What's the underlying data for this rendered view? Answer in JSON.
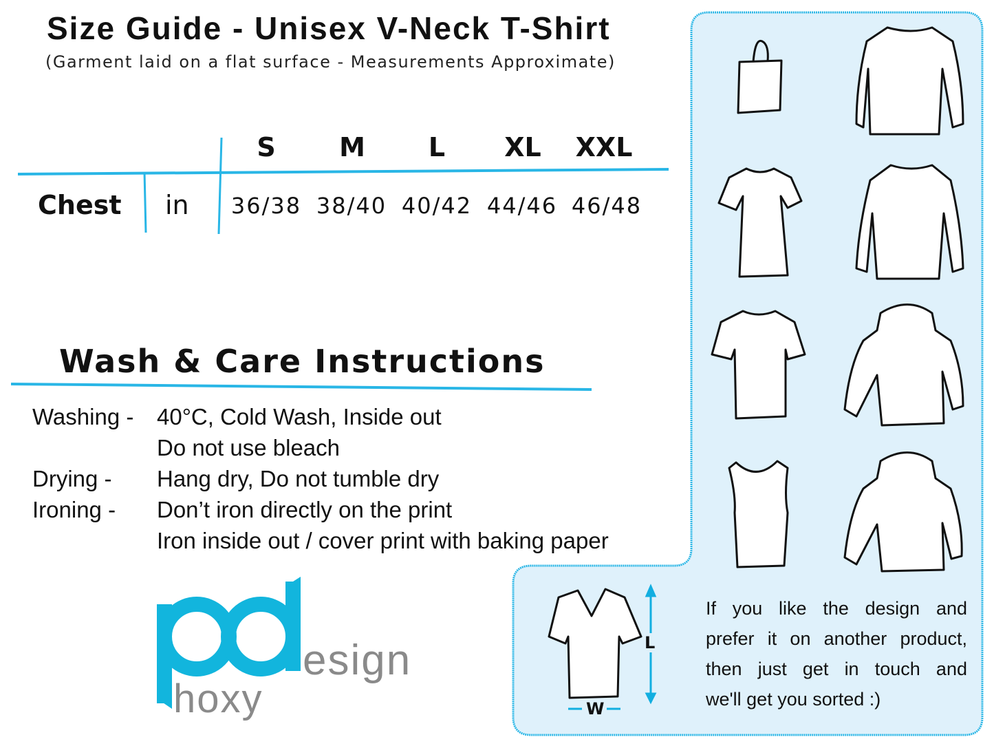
{
  "header": {
    "title": "Size Guide - Unisex V-Neck T-Shirt",
    "subtitle": "(Garment laid on a flat surface - Measurements Approximate)"
  },
  "size_table": {
    "sizes": [
      "S",
      "M",
      "L",
      "XL",
      "XXL"
    ],
    "rows": [
      {
        "label": "Chest",
        "unit": "in",
        "values": [
          "36/38",
          "38/40",
          "40/42",
          "44/46",
          "46/48"
        ]
      }
    ]
  },
  "care": {
    "title": "Wash & Care Instructions",
    "items": [
      {
        "label": "Washing -",
        "lines": [
          "40°C, Cold Wash, Inside out",
          "Do not use bleach"
        ]
      },
      {
        "label": "Drying -",
        "lines": [
          "Hang dry, Do not tumble dry"
        ]
      },
      {
        "label": "Ironing -",
        "lines": [
          "Don’t iron directly on the print",
          "Iron inside out / cover print with baking paper"
        ]
      }
    ]
  },
  "logo": {
    "primary": "pd",
    "secondary": "esign",
    "tertiary": "hoxy"
  },
  "panel": {
    "products": [
      "tote-bag",
      "long-sleeve-shirt",
      "womens-t-shirt",
      "sweatshirt",
      "t-shirt",
      "hoodie",
      "tank-top",
      "zip-hoodie"
    ],
    "measure_labels": {
      "length": "L",
      "width": "W"
    },
    "message_lines": [
      "If you like the design and",
      "prefer it on another product,",
      "then just get in touch and",
      "we'll get you sorted :)"
    ]
  },
  "colors": {
    "accent": "#29b6e6",
    "panel_bg": "#dff1fb",
    "logo_cyan": "#12b5dd",
    "logo_gray": "#8a8a8a"
  }
}
